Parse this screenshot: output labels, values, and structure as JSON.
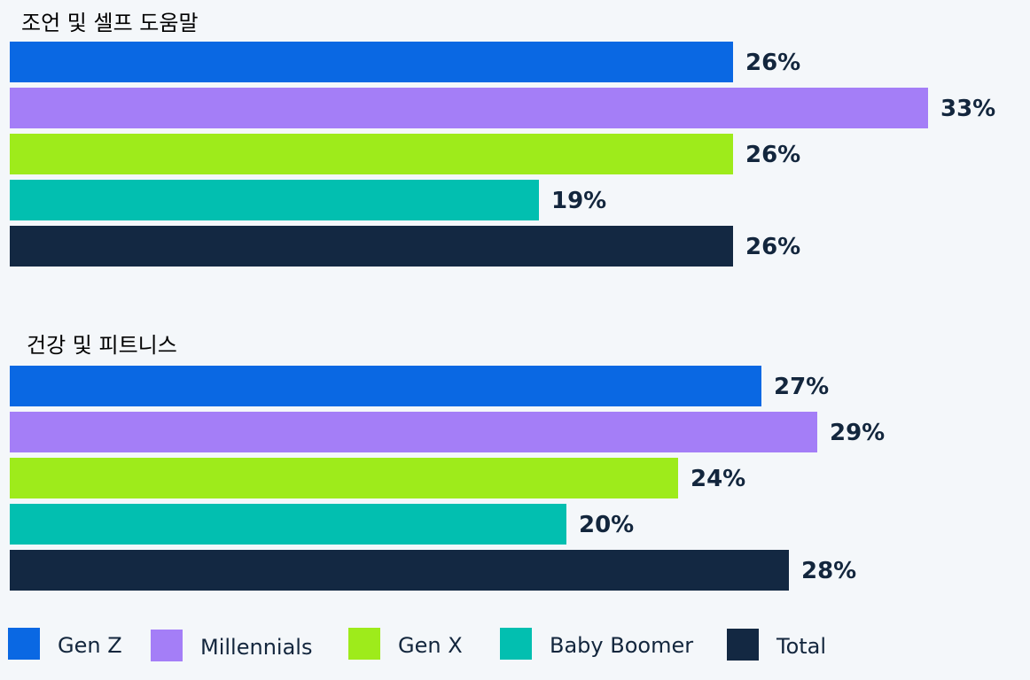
{
  "chart_data": {
    "type": "bar",
    "orientation": "horizontal",
    "groups": [
      {
        "title": "조언 및 셀프 도움말",
        "values": [
          26,
          33,
          26,
          19,
          26
        ],
        "labels": [
          "26%",
          "33%",
          "26%",
          "19%",
          "26%"
        ]
      },
      {
        "title": "건강 및 피트니스",
        "values": [
          27,
          29,
          24,
          20,
          28
        ],
        "labels": [
          "27%",
          "29%",
          "24%",
          "20%",
          "28%"
        ]
      }
    ],
    "series": [
      {
        "name": "Gen Z",
        "color": "#0a68e3"
      },
      {
        "name": "Millennials",
        "color": "#a47ef7"
      },
      {
        "name": "Gen X",
        "color": "#9eeb1b"
      },
      {
        "name": "Baby Boomer",
        "color": "#02bfb0"
      },
      {
        "name": "Total",
        "color": "#132842"
      }
    ],
    "unit": "%",
    "xlim": [
      0,
      33
    ],
    "grid": false,
    "legend_position": "bottom"
  }
}
